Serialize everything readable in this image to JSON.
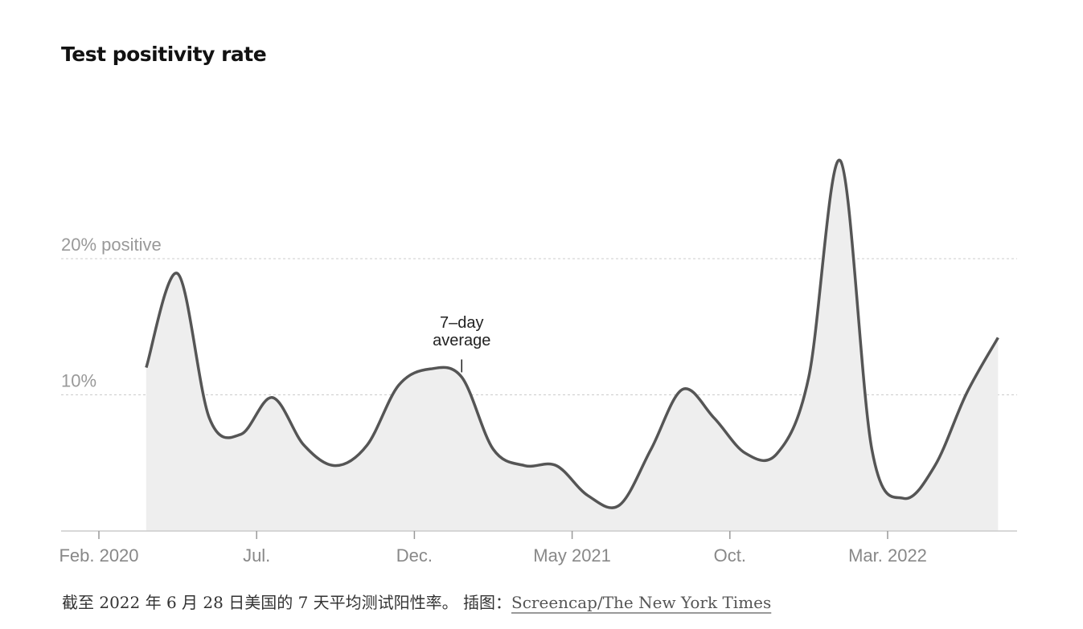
{
  "chart_data": {
    "type": "area",
    "title": "Test positivity rate",
    "x": [
      "2020-03",
      "2020-04",
      "2020-05",
      "2020-06",
      "2020-07",
      "2020-08",
      "2020-09",
      "2020-10",
      "2020-11",
      "2020-12",
      "2021-01",
      "2021-02",
      "2021-03",
      "2021-04",
      "2021-05",
      "2021-06",
      "2021-07",
      "2021-08",
      "2021-09",
      "2021-10",
      "2021-11",
      "2021-12",
      "2022-01",
      "2022-02",
      "2022-03",
      "2022-04",
      "2022-05",
      "2022-06"
    ],
    "values": [
      12.0,
      18.9,
      8.3,
      7.1,
      9.8,
      6.3,
      4.8,
      6.3,
      10.7,
      11.9,
      11.3,
      6.0,
      4.8,
      4.8,
      2.6,
      1.9,
      6.0,
      10.4,
      8.3,
      5.7,
      5.7,
      11.3,
      27.2,
      6.0,
      2.4,
      4.8,
      10.1,
      14.2
    ],
    "color": "#555555",
    "fill": "#eeeeee",
    "ylim": [
      0,
      30
    ],
    "yticks": [
      {
        "value": 10,
        "label": "10%"
      },
      {
        "value": 20,
        "label": "20% positive"
      }
    ],
    "xticks": [
      {
        "value": "2020-02",
        "label": "Feb. 2020"
      },
      {
        "value": "2020-07",
        "label": "Jul."
      },
      {
        "value": "2020-12",
        "label": "Dec."
      },
      {
        "value": "2021-05",
        "label": "May 2021"
      },
      {
        "value": "2021-10",
        "label": "Oct."
      },
      {
        "value": "2022-03",
        "label": "Mar. 2022"
      }
    ],
    "grid": true,
    "annotations": [
      {
        "text": "7–day average",
        "x": "2021-01"
      }
    ]
  },
  "caption": "截至 2022 年 6 月 28 日美国的 7 天平均测试阳性率。 插图：",
  "credit": "Screencap/The New York Times"
}
